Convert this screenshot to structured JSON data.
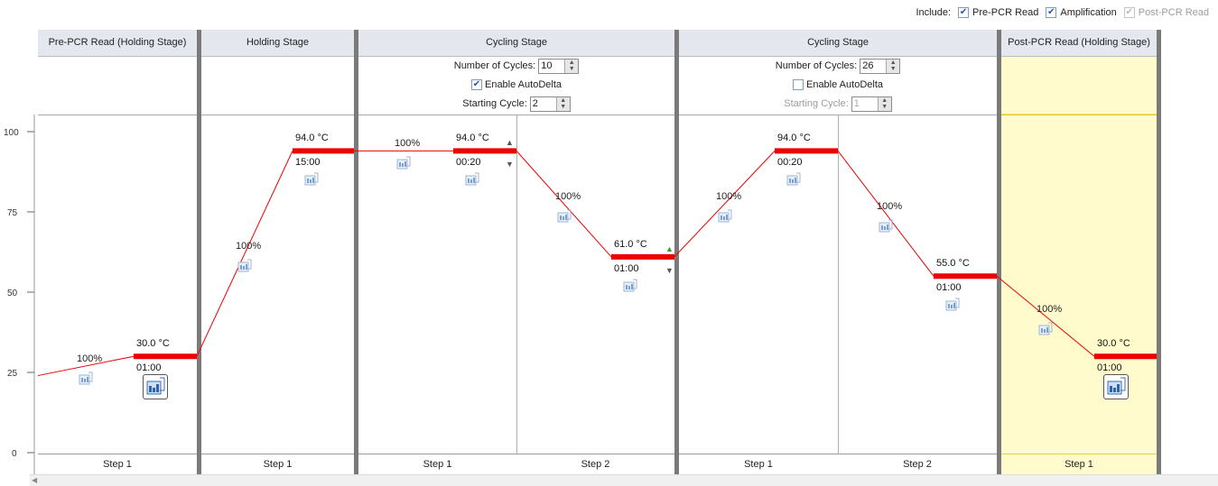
{
  "include": {
    "label": "Include:",
    "options": [
      {
        "label": "Pre-PCR Read",
        "checked": true,
        "enabled": true
      },
      {
        "label": "Amplification",
        "checked": true,
        "enabled": true
      },
      {
        "label": "Post-PCR Read",
        "checked": true,
        "enabled": false
      }
    ]
  },
  "y_axis": {
    "ticks": [
      "100",
      "75",
      "50",
      "25",
      "0"
    ]
  },
  "stages": [
    {
      "title": "Pre-PCR Read (Holding Stage)",
      "steps": [
        "Step 1"
      ]
    },
    {
      "title": "Holding Stage",
      "steps": [
        "Step 1"
      ]
    },
    {
      "title": "Cycling Stage",
      "cycles_label": "Number of Cycles:",
      "cycles": "10",
      "autodelta_label": "Enable AutoDelta",
      "autodelta": true,
      "starting_cycle_label": "Starting Cycle:",
      "starting_cycle": "2",
      "steps": [
        "Step 1",
        "Step 2"
      ]
    },
    {
      "title": "Cycling Stage",
      "cycles_label": "Number of Cycles:",
      "cycles": "26",
      "autodelta_label": "Enable AutoDelta",
      "autodelta": false,
      "starting_cycle_label": "Starting Cycle:",
      "starting_cycle": "1",
      "steps": [
        "Step 1",
        "Step 2"
      ]
    },
    {
      "title": "Post-PCR Read (Holding Stage)",
      "steps": [
        "Step 1"
      ]
    }
  ],
  "steps": [
    {
      "temp": "30.0 °C",
      "time": "01:00",
      "ramp": "100%",
      "temp_value": 30,
      "collect": true
    },
    {
      "temp": "94.0 °C",
      "time": "15:00",
      "ramp": "100%",
      "temp_value": 94,
      "collect": false
    },
    {
      "temp": "94.0 °C",
      "time": "00:20",
      "ramp": "100%",
      "temp_value": 94,
      "collect": false
    },
    {
      "temp": "61.0 °C",
      "time": "01:00",
      "ramp": "100%",
      "temp_value": 61,
      "collect": false
    },
    {
      "temp": "94.0 °C",
      "time": "00:20",
      "ramp": "100%",
      "temp_value": 94,
      "collect": false
    },
    {
      "temp": "55.0 °C",
      "time": "01:00",
      "ramp": "100%",
      "temp_value": 55,
      "collect": false
    },
    {
      "temp": "30.0 °C",
      "time": "01:00",
      "ramp": "100%",
      "temp_value": 30,
      "collect": true
    }
  ],
  "initial_temp_value": 24,
  "colors": {
    "profile": "#ee0000",
    "separator": "#7a7a7a",
    "post_bg": "#fffbcc",
    "header_bg": "#e5e7ef"
  },
  "icons": {
    "collect": "camera-icon",
    "autodelta_up": "triangle-up-icon",
    "autodelta_down": "triangle-down-icon"
  }
}
